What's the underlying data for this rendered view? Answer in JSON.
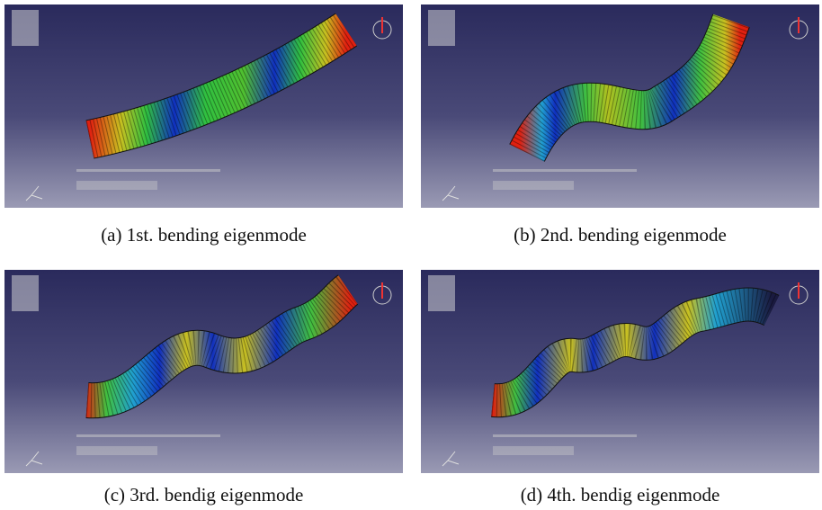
{
  "figures": [
    {
      "caption": "(a) 1st. bending eigenmode"
    },
    {
      "caption": "(b) 2nd. bending eigenmode"
    },
    {
      "caption": "(c) 3rd. bendig eigenmode"
    },
    {
      "caption": "(d) 4th. bendig eigenmode"
    }
  ]
}
